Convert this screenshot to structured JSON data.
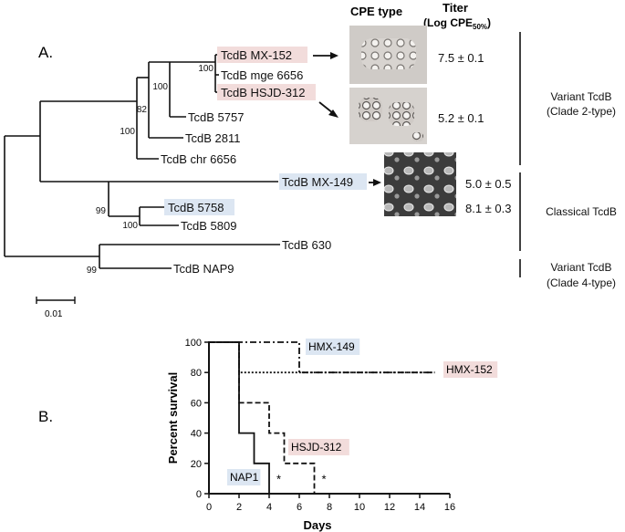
{
  "panelA": {
    "label": "A.",
    "cpe_header": "CPE type",
    "titer_header_line1": "Titer",
    "titer_header_line2": "(Log CPE",
    "titer_header_sub": "50%",
    "titer_header_close": ")",
    "scale_label": "0.01",
    "leaves": [
      {
        "id": "mx152",
        "label": "TcdB MX-152",
        "highlight": "pink"
      },
      {
        "id": "mge",
        "label": "TcdB mge 6656",
        "highlight": ""
      },
      {
        "id": "hsjd",
        "label": "TcdB HSJD-312",
        "highlight": "pink"
      },
      {
        "id": "b5757",
        "label": "TcdB 5757",
        "highlight": ""
      },
      {
        "id": "b2811",
        "label": "TcdB 2811",
        "highlight": ""
      },
      {
        "id": "chr",
        "label": "TcdB chr 6656",
        "highlight": ""
      },
      {
        "id": "mx149",
        "label": "TcdB MX-149",
        "highlight": "blue"
      },
      {
        "id": "b5758",
        "label": "TcdB 5758",
        "highlight": "blue"
      },
      {
        "id": "b5809",
        "label": "TcdB 5809",
        "highlight": ""
      },
      {
        "id": "b630",
        "label": "TcdB 630",
        "highlight": ""
      },
      {
        "id": "nap9",
        "label": "TcdB NAP9",
        "highlight": ""
      }
    ],
    "bootstraps": [
      "100",
      "100",
      "82",
      "100",
      "99",
      "100",
      "99"
    ],
    "titers": [
      "7.5 ± 0.1",
      "5.2 ± 0.1",
      "5.0 ± 0.5",
      "8.1 ± 0.3"
    ],
    "groups": [
      {
        "line1": "Variant TcdB",
        "line2": "(Clade 2-type)"
      },
      {
        "line1": "Classical TcdB",
        "line2": ""
      },
      {
        "line1": "Variant TcdB",
        "line2": "(Clade 4-type)"
      }
    ]
  },
  "panelB": {
    "label": "B.",
    "asterisk": "*",
    "colors": {
      "pink": "#f2dcdb",
      "blue": "#dce6f2"
    },
    "chart_data": {
      "type": "line",
      "xlabel": "Days",
      "ylabel": "Percent survival",
      "xlim": [
        0,
        16
      ],
      "ylim": [
        0,
        100
      ],
      "xticks": [
        0,
        2,
        4,
        6,
        8,
        10,
        12,
        14,
        16
      ],
      "yticks": [
        0,
        20,
        40,
        60,
        80,
        100
      ],
      "grid": false,
      "series": [
        {
          "name": "HMX-149",
          "style": "dashdot",
          "highlight": "blue",
          "steps": [
            [
              0,
              100
            ],
            [
              6,
              100
            ],
            [
              6,
              80
            ],
            [
              15,
              80
            ]
          ]
        },
        {
          "name": "HMX-152",
          "style": "dotted",
          "highlight": "pink",
          "steps": [
            [
              0,
              100
            ],
            [
              2,
              100
            ],
            [
              2,
              80
            ],
            [
              15,
              80
            ]
          ]
        },
        {
          "name": "HSJD-312",
          "style": "dashed",
          "highlight": "pink",
          "steps": [
            [
              0,
              100
            ],
            [
              2,
              100
            ],
            [
              2,
              60
            ],
            [
              4,
              60
            ],
            [
              4,
              40
            ],
            [
              5,
              40
            ],
            [
              5,
              20
            ],
            [
              7,
              20
            ],
            [
              7,
              0
            ]
          ]
        },
        {
          "name": "NAP1",
          "style": "solid",
          "highlight": "blue",
          "steps": [
            [
              0,
              100
            ],
            [
              2,
              100
            ],
            [
              2,
              40
            ],
            [
              3,
              40
            ],
            [
              3,
              20
            ],
            [
              4,
              20
            ],
            [
              4,
              0
            ]
          ]
        }
      ]
    }
  }
}
